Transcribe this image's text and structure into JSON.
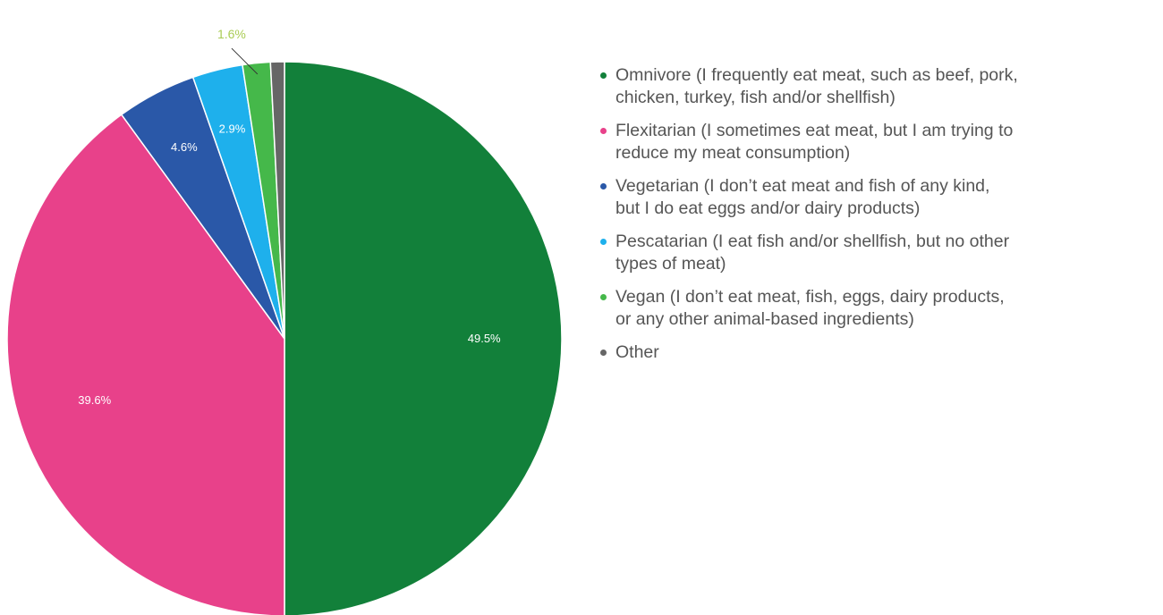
{
  "chart_data": {
    "type": "pie",
    "start": "top",
    "direction": "clockwise",
    "legend_position": "right",
    "slices": [
      {
        "label": "Omnivore (I frequently eat meat, such as beef, pork,\nchicken, turkey, fish and/or shellfish)",
        "value": 49.5,
        "value_label": "49.5%",
        "label_placement": "inside",
        "color": "#12803a"
      },
      {
        "label": "Flexitarian (I sometimes eat meat, but I am trying to\nreduce my meat consumption)",
        "value": 39.6,
        "value_label": "39.6%",
        "label_placement": "inside",
        "color": "#e8418a"
      },
      {
        "label": "Vegetarian (I don’t eat meat and fish of any kind,\nbut I do eat eggs and/or dairy products)",
        "value": 4.6,
        "value_label": "4.6%",
        "label_placement": "inside",
        "color": "#2a58a8"
      },
      {
        "label": "Pescatarian (I eat fish and/or shellfish, but no other\ntypes of meat)",
        "value": 2.9,
        "value_label": "2.9%",
        "label_placement": "inside",
        "color": "#1eb0ec"
      },
      {
        "label": "Vegan (I don’t eat meat, fish, eggs, dairy products,\nor any other animal-based ingredients)",
        "value": 1.6,
        "value_label": "1.6%",
        "label_placement": "outside",
        "color": "#45b84a",
        "label_color": "#aacc55"
      },
      {
        "label": "Other",
        "value": 0.8,
        "value_label": "",
        "label_placement": "none",
        "color": "#666666"
      }
    ]
  }
}
